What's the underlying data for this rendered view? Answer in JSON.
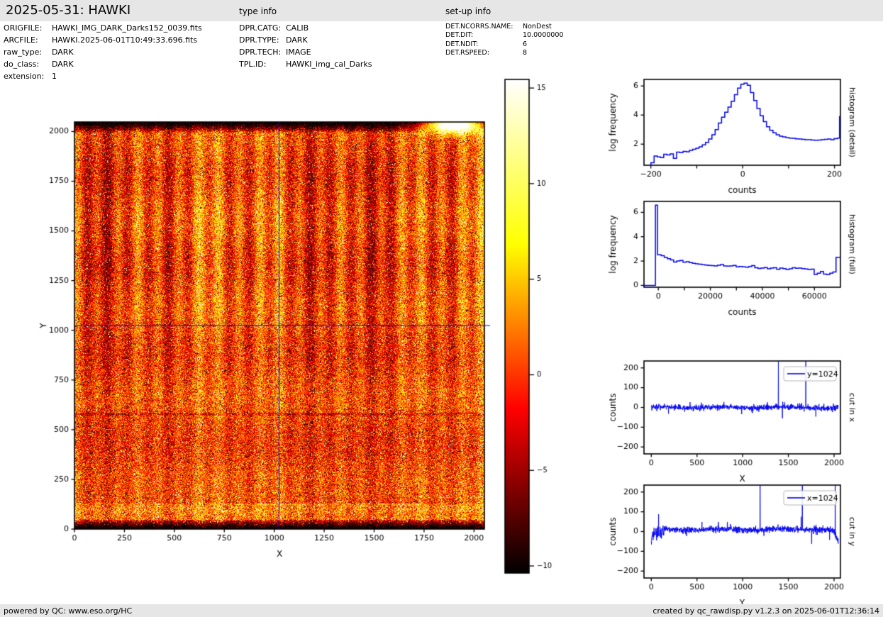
{
  "header": {
    "title": "2025-05-31: HAWKI",
    "type_info_label": "type info",
    "setup_info_label": "set-up info"
  },
  "file_info": {
    "rows": [
      {
        "label": "ORIGFILE:",
        "value": "HAWKI_IMG_DARK_Darks152_0039.fits"
      },
      {
        "label": "ARCFILE:",
        "value": "HAWKI.2025-06-01T10:49:33.696.fits"
      },
      {
        "label": "raw_type:",
        "value": "DARK"
      },
      {
        "label": "do_class:",
        "value": "DARK"
      },
      {
        "label": "extension:",
        "value": "1"
      }
    ]
  },
  "type_info": {
    "rows": [
      {
        "label": "DPR.CATG:",
        "value": "CALIB"
      },
      {
        "label": "DPR.TYPE:",
        "value": "DARK"
      },
      {
        "label": "DPR.TECH:",
        "value": "IMAGE"
      },
      {
        "label": "TPL.ID:",
        "value": "HAWKI_img_cal_Darks"
      }
    ]
  },
  "setup_info": {
    "rows": [
      {
        "label": "DET.NCORRS.NAME:",
        "value": "NonDest"
      },
      {
        "label": "DET.DIT:",
        "value": "10.0000000"
      },
      {
        "label": "DET.NDIT:",
        "value": "6"
      },
      {
        "label": "DET.RSPEED:",
        "value": "8"
      }
    ]
  },
  "footer": {
    "left": "powered by QC: www.eso.org/HC",
    "right": "created by qc_rawdisp.py v1.2.3 on 2025-06-01T12:36:14"
  },
  "colors": {
    "plot_line": "#0000ee",
    "crosshair": "#0000dd",
    "header_bg": "#e6e6e6",
    "footer_bg": "#e6e6e6",
    "axes": "#000000"
  },
  "chart_data": [
    {
      "id": "main_image",
      "type": "heatmap",
      "xlabel": "X",
      "ylabel": "Y",
      "xlim": [
        0,
        2052
      ],
      "ylim": [
        0,
        2048
      ],
      "xticks": [
        0,
        250,
        500,
        750,
        1000,
        1250,
        1500,
        1750,
        2000
      ],
      "yticks": [
        0,
        250,
        500,
        750,
        1000,
        1250,
        1500,
        1750,
        2000
      ],
      "colormap": "hot",
      "display_range": [
        -10.4,
        15.5
      ],
      "crosshair": {
        "x": 1024,
        "y": 1024
      },
      "features": {
        "vertical_striping": true,
        "top_dark_band": true,
        "bottom_dark_band": true,
        "bright_band_above_bottom": true,
        "white_blob_top_right_x": 1850,
        "faint_dark_row_y": 600,
        "noise_seed": 1234
      }
    },
    {
      "id": "colorbar",
      "type": "colorbar",
      "colormap": "hot",
      "vmin": -10.37,
      "vmax": 15.45,
      "ticks": [
        15,
        10,
        5,
        0,
        -5,
        -10
      ]
    },
    {
      "id": "hist_detail",
      "type": "line",
      "style": "step",
      "right_label": "histogram (detail)",
      "xlabel": "counts",
      "ylabel": "log frequency",
      "xlim": [
        -215,
        213
      ],
      "ylim": [
        0.55,
        6.45
      ],
      "xticks_labeled": [
        -200,
        0,
        200
      ],
      "xticks_minor": [
        -100,
        100
      ],
      "yticks": [
        2,
        4,
        6
      ],
      "x": [
        -200,
        -193,
        -186,
        -179,
        -172,
        -165,
        -158,
        -151,
        -144,
        -137,
        -130,
        -123,
        -116,
        -109,
        -102,
        -95,
        -88,
        -81,
        -74,
        -67,
        -60,
        -53,
        -46,
        -39,
        -32,
        -25,
        -18,
        -11,
        -4,
        3,
        10,
        17,
        24,
        31,
        38,
        45,
        52,
        59,
        66,
        73,
        80,
        87,
        94,
        101,
        108,
        115,
        122,
        129,
        136,
        143,
        150,
        157,
        164,
        171,
        178,
        185,
        192,
        199,
        206,
        211
      ],
      "y": [
        0.72,
        1.18,
        1.12,
        1.08,
        1.3,
        1.26,
        1.33,
        1.02,
        1.45,
        1.42,
        1.5,
        1.48,
        1.58,
        1.65,
        1.72,
        1.82,
        1.95,
        2.12,
        2.35,
        2.65,
        3.0,
        3.45,
        3.85,
        4.2,
        4.55,
        4.95,
        5.4,
        5.85,
        6.12,
        6.2,
        6.05,
        5.55,
        5.0,
        4.45,
        3.95,
        3.55,
        3.2,
        2.95,
        2.78,
        2.65,
        2.55,
        2.5,
        2.45,
        2.42,
        2.4,
        2.37,
        2.35,
        2.33,
        2.3,
        2.3,
        2.28,
        2.27,
        2.28,
        2.3,
        2.33,
        2.36,
        2.3,
        2.38,
        2.42,
        3.9
      ]
    },
    {
      "id": "hist_full",
      "type": "line",
      "style": "step",
      "right_label": "histogram (full)",
      "xlabel": "counts",
      "ylabel": "log frequency",
      "xlim": [
        -5500,
        70000
      ],
      "ylim": [
        -0.15,
        6.9
      ],
      "xticks_labeled": [
        0,
        20000,
        40000,
        60000
      ],
      "xticks_minor": [
        10000,
        30000,
        50000
      ],
      "yticks": [
        0,
        2,
        4,
        6
      ],
      "x": [
        -5500,
        -1100,
        -300,
        1100,
        2300,
        3500,
        4700,
        5900,
        7100,
        8300,
        9500,
        10700,
        11900,
        13100,
        14300,
        15500,
        16700,
        17900,
        19100,
        20300,
        21500,
        22700,
        23900,
        25100,
        26300,
        27500,
        28700,
        29900,
        31100,
        32300,
        33500,
        34700,
        35900,
        37100,
        38300,
        39500,
        40700,
        41900,
        43100,
        44300,
        45500,
        46700,
        47900,
        49100,
        50300,
        51500,
        52700,
        53900,
        55100,
        56300,
        57500,
        58700,
        59900,
        61100,
        62300,
        63500,
        64700,
        65900,
        67100,
        68300
      ],
      "y": [
        0.0,
        6.6,
        2.52,
        2.45,
        2.3,
        2.2,
        2.1,
        1.92,
        2.0,
        2.05,
        1.9,
        1.95,
        1.88,
        1.82,
        1.78,
        1.74,
        1.7,
        1.67,
        1.64,
        1.62,
        1.6,
        1.66,
        1.71,
        1.6,
        1.58,
        1.6,
        1.64,
        1.52,
        1.56,
        1.52,
        1.5,
        1.56,
        1.62,
        1.45,
        1.4,
        1.43,
        1.46,
        1.36,
        1.42,
        1.45,
        1.32,
        1.43,
        1.38,
        1.31,
        1.36,
        1.45,
        1.41,
        1.42,
        1.38,
        1.35,
        1.31,
        1.33,
        0.9,
        1.0,
        1.14,
        0.93,
        0.89,
        1.0,
        1.1,
        2.3
      ]
    },
    {
      "id": "cut_x",
      "type": "line",
      "style": "noise",
      "right_label": "cut in x",
      "legend": "y=1024",
      "xlabel": "X",
      "ylabel": "counts",
      "xlim": [
        -80,
        2070
      ],
      "ylim": [
        -235,
        235
      ],
      "xticks_labeled": [
        0,
        500,
        1000,
        1500,
        2000
      ],
      "yticks": [
        -200,
        -100,
        0,
        100,
        200
      ],
      "noise": {
        "baseline": 0,
        "sigma": 7,
        "seed": 42
      },
      "spikes_up": [
        {
          "x": 1390,
          "y": 260
        },
        {
          "x": 1690,
          "y": 260
        }
      ],
      "spikes_down": [
        {
          "x": 1435,
          "y": -55
        },
        {
          "x": 1800,
          "y": -46
        }
      ]
    },
    {
      "id": "cut_y",
      "type": "line",
      "style": "noise",
      "right_label": "cut in y",
      "legend": "x=1024",
      "xlabel": "Y",
      "ylabel": "counts",
      "xlim": [
        -80,
        2070
      ],
      "ylim": [
        -235,
        235
      ],
      "xticks_labeled": [
        0,
        500,
        1000,
        1500,
        2000
      ],
      "yticks": [
        -200,
        -100,
        0,
        100,
        200
      ],
      "noise": {
        "baseline": 11,
        "sigma": 8,
        "seed": 7,
        "start_dip": -40,
        "end_drop": -45
      },
      "spikes_up": [
        {
          "x": 80,
          "y": 88
        },
        {
          "x": 735,
          "y": 48
        },
        {
          "x": 1190,
          "y": 260
        },
        {
          "x": 1640,
          "y": 75
        },
        {
          "x": 1652,
          "y": 260
        },
        {
          "x": 2012,
          "y": 260
        }
      ],
      "spikes_down": [
        {
          "x": 58,
          "y": -45
        },
        {
          "x": 1755,
          "y": -62
        },
        {
          "x": 1950,
          "y": -42
        }
      ]
    }
  ]
}
